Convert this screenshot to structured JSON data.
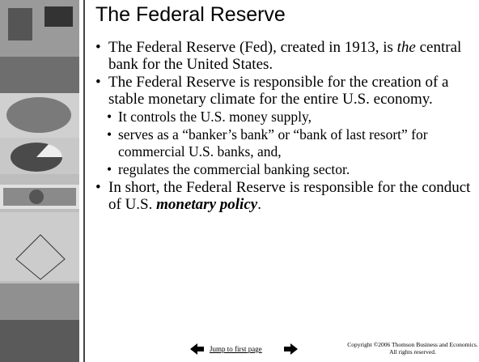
{
  "title": "The Federal Reserve",
  "bullets": [
    {
      "parts": [
        "The Federal Reserve (Fed), created in 1913, is ",
        "the",
        " central bank for the United States."
      ]
    },
    {
      "parts": [
        "The Federal Reserve is responsible for the creation of a stable monetary climate for the entire U.S. economy."
      ]
    },
    {
      "sub": [
        "It controls the U.S. money supply,",
        "serves as a “banker’s bank” or “bank of last resort” for commercial U.S. banks, and,",
        "regulates the commercial banking sector."
      ]
    },
    {
      "parts": [
        "In short, the Federal Reserve is responsible for the conduct of U.S. ",
        "monetary policy",
        "."
      ]
    }
  ],
  "footer": {
    "link": "Jump to first page",
    "copyright": "Copyright ©2006  Thomson Business and Economics. All rights reserved."
  }
}
